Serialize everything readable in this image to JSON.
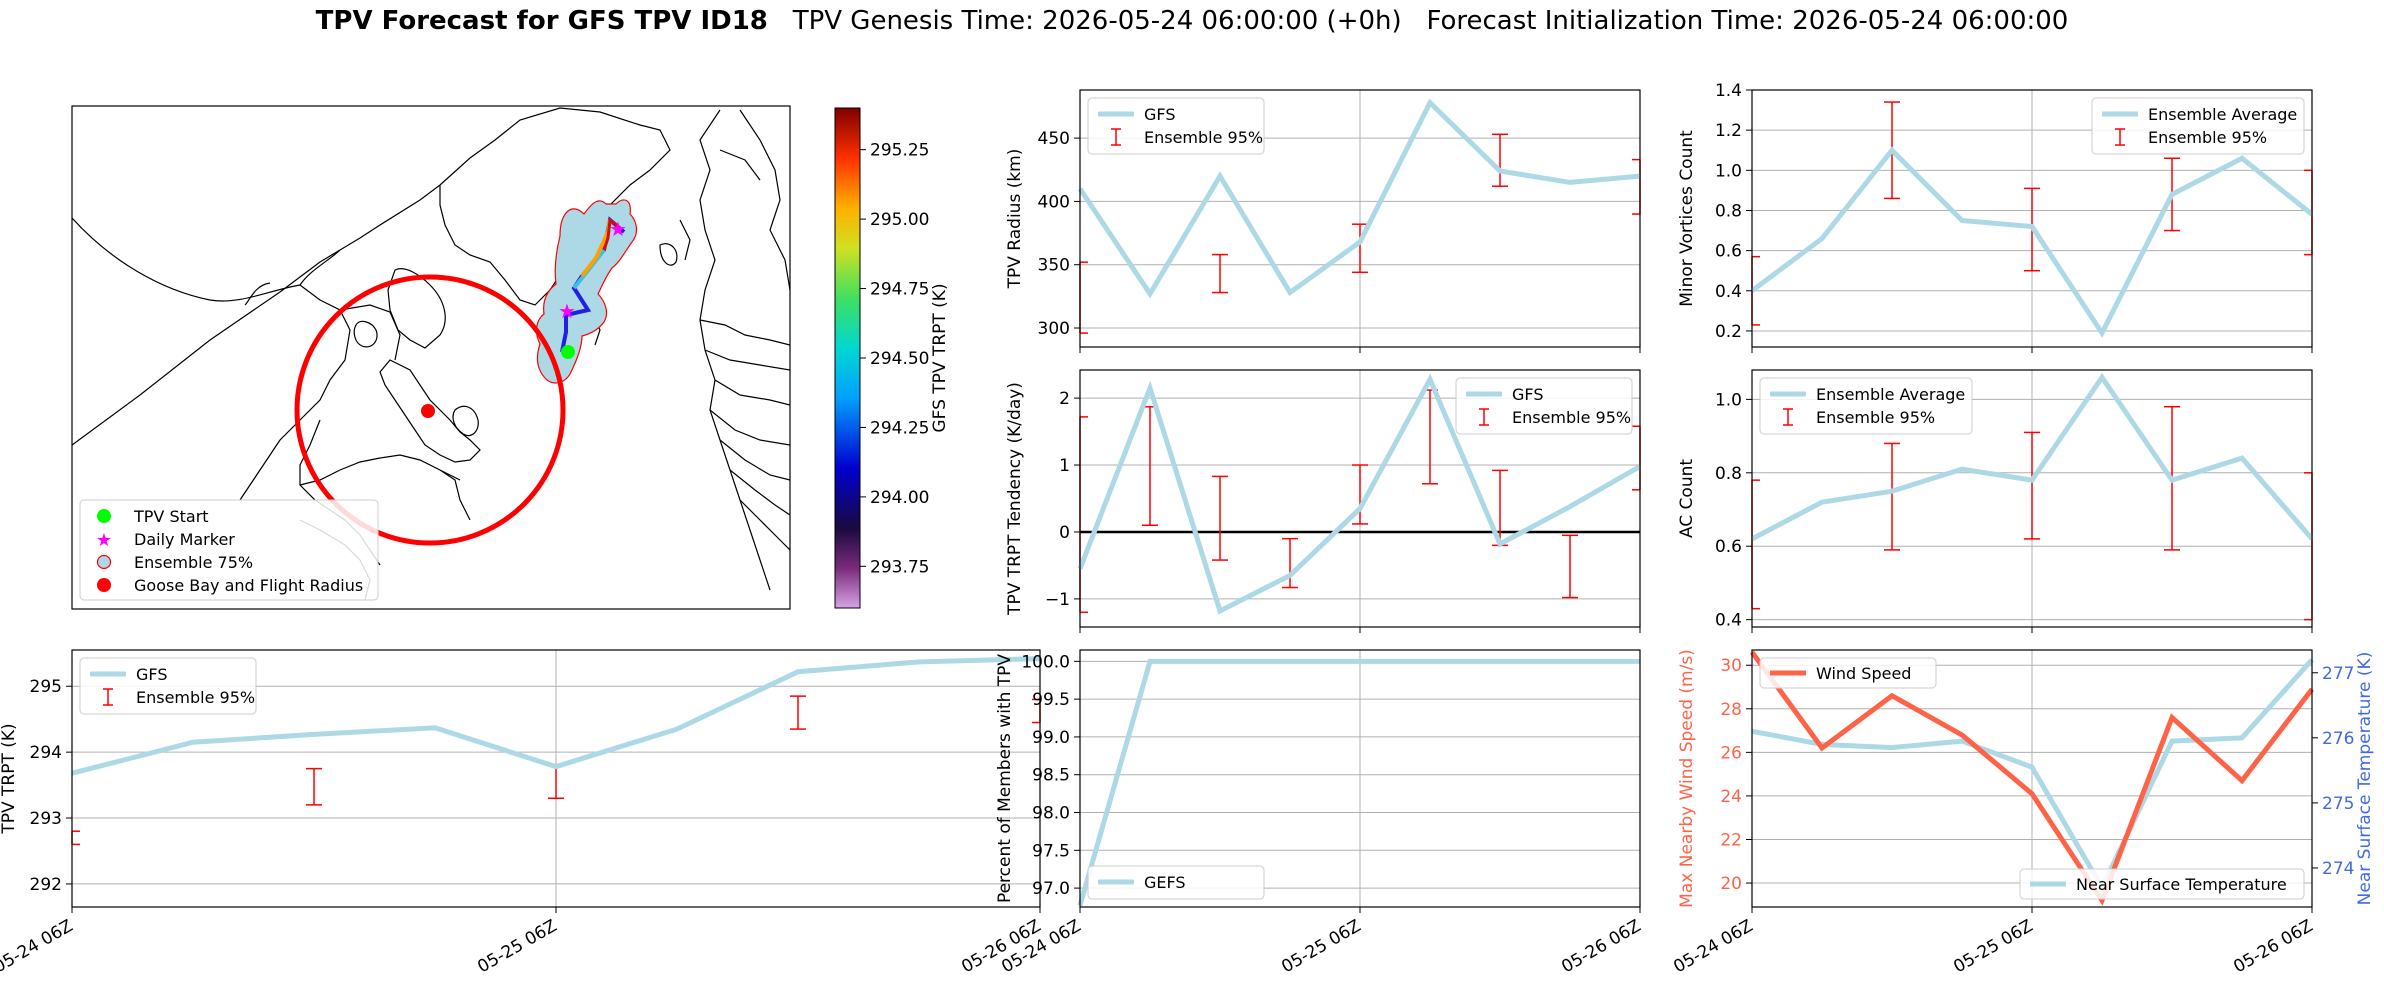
{
  "title": {
    "bold": "TPV Forecast for GFS TPV ID18",
    "genesis": "TPV Genesis Time: 2026-05-24 06:00:00 (+0h)",
    "init": "Forecast Initialization Time: 2026-05-24 06:00:00"
  },
  "colors": {
    "main_line": "#add8e6",
    "error_bar": "#ff0000",
    "wind": "#ff6347",
    "temp_axis": "#4169e1",
    "grid": "#b0b0b0"
  },
  "map": {
    "colorbar_label": "GFS TPV TRPT (K)",
    "colorbar_ticks": [
      "293.75",
      "294.00",
      "294.25",
      "294.50",
      "294.75",
      "295.00",
      "295.25"
    ],
    "legend": [
      {
        "label": "TPV Start",
        "marker": "green-dot"
      },
      {
        "label": "Daily Marker",
        "marker": "magenta-star"
      },
      {
        "label": "Ensemble 75%",
        "marker": "lightblue-circle-red-edge"
      },
      {
        "label": "Goose Bay and Flight Radius",
        "marker": "red-dot"
      }
    ]
  },
  "x_ticks": [
    "05-24 06Z",
    "05-25 06Z",
    "05-26 06Z"
  ],
  "chart_data": [
    {
      "id": "radius",
      "type": "line",
      "ylabel": "TPV Radius (km)",
      "ylim": [
        285,
        488
      ],
      "yticks": [
        300,
        350,
        400,
        450
      ],
      "ytick_labels": [
        "300",
        "350",
        "400",
        "450"
      ],
      "grid": true,
      "legend_position": "upper-left",
      "legend": [
        "GFS",
        "Ensemble 95%"
      ],
      "x": [
        0,
        6,
        12,
        18,
        24,
        30,
        36,
        42,
        48
      ],
      "series": [
        {
          "name": "GFS",
          "values": [
            410,
            327,
            420,
            328,
            368,
            478,
            424,
            415,
            420
          ]
        }
      ],
      "errorbars": [
        {
          "x": 0,
          "low": 296,
          "high": 352
        },
        {
          "x": 12,
          "low": 328,
          "high": 358
        },
        {
          "x": 24,
          "low": 344,
          "high": 382
        },
        {
          "x": 36,
          "low": 412,
          "high": 453
        },
        {
          "x": 48,
          "low": 390,
          "high": 433
        }
      ]
    },
    {
      "id": "minor",
      "type": "line",
      "ylabel": "Minor Vortices Count",
      "ylim": [
        0.12,
        1.4
      ],
      "yticks": [
        0.2,
        0.4,
        0.6,
        0.8,
        1.0,
        1.2,
        1.4
      ],
      "ytick_labels": [
        "0.2",
        "0.4",
        "0.6",
        "0.8",
        "1.0",
        "1.2",
        "1.4"
      ],
      "grid": true,
      "legend_position": "upper-right",
      "legend": [
        "Ensemble Average",
        "Ensemble 95%"
      ],
      "x": [
        0,
        6,
        12,
        18,
        24,
        30,
        36,
        42,
        48
      ],
      "series": [
        {
          "name": "Ensemble Average",
          "values": [
            0.4,
            0.66,
            1.1,
            0.75,
            0.72,
            0.19,
            0.88,
            1.06,
            0.78
          ]
        }
      ],
      "errorbars": [
        {
          "x": 0,
          "low": 0.23,
          "high": 0.57
        },
        {
          "x": 12,
          "low": 0.86,
          "high": 1.34
        },
        {
          "x": 24,
          "low": 0.5,
          "high": 0.91
        },
        {
          "x": 36,
          "low": 0.7,
          "high": 1.06
        },
        {
          "x": 48,
          "low": 0.58,
          "high": 1.0
        }
      ]
    },
    {
      "id": "tendency",
      "type": "line",
      "ylabel": "TPV TRPT Tendency (K/day)",
      "ylim": [
        -1.42,
        2.42
      ],
      "yticks": [
        -1,
        0,
        1,
        2
      ],
      "ytick_labels": [
        "−1",
        "0",
        "1",
        "2"
      ],
      "grid": true,
      "zero_line": true,
      "legend_position": "upper-right",
      "legend": [
        "GFS",
        "Ensemble 95%"
      ],
      "x": [
        0,
        6,
        12,
        18,
        24,
        30,
        36,
        42,
        48
      ],
      "series": [
        {
          "name": "GFS",
          "values": [
            -0.55,
            2.15,
            -1.18,
            -0.65,
            0.35,
            2.28,
            -0.18,
            0.38,
            0.98
          ]
        }
      ],
      "errorbars": [
        {
          "x": 0,
          "low": -1.2,
          "high": 1.72
        },
        {
          "x": 6,
          "low": 0.1,
          "high": 1.87
        },
        {
          "x": 12,
          "low": -0.42,
          "high": 0.83
        },
        {
          "x": 18,
          "low": -0.83,
          "high": -0.1
        },
        {
          "x": 24,
          "low": 0.12,
          "high": 1.0
        },
        {
          "x": 30,
          "low": 0.72,
          "high": 2.12
        },
        {
          "x": 36,
          "low": -0.2,
          "high": 0.92
        },
        {
          "x": 42,
          "low": -0.98,
          "high": -0.05
        },
        {
          "x": 48,
          "low": 0.63,
          "high": 1.58
        }
      ]
    },
    {
      "id": "ac",
      "type": "line",
      "ylabel": "AC Count",
      "ylim": [
        0.38,
        1.08
      ],
      "yticks": [
        0.4,
        0.6,
        0.8,
        1.0
      ],
      "ytick_labels": [
        "0.4",
        "0.6",
        "0.8",
        "1.0"
      ],
      "grid": true,
      "legend_position": "upper-left",
      "legend": [
        "Ensemble Average",
        "Ensemble 95%"
      ],
      "x": [
        0,
        6,
        12,
        18,
        24,
        30,
        36,
        42,
        48
      ],
      "series": [
        {
          "name": "Ensemble Average",
          "values": [
            0.62,
            0.72,
            0.75,
            0.81,
            0.78,
            1.06,
            0.78,
            0.84,
            0.62
          ]
        }
      ],
      "errorbars": [
        {
          "x": 0,
          "low": 0.43,
          "high": 0.78
        },
        {
          "x": 12,
          "low": 0.59,
          "high": 0.88
        },
        {
          "x": 24,
          "low": 0.62,
          "high": 0.91
        },
        {
          "x": 36,
          "low": 0.59,
          "high": 0.98
        },
        {
          "x": 48,
          "low": 0.4,
          "high": 0.8
        }
      ]
    },
    {
      "id": "trpt",
      "type": "line",
      "ylabel": "TPV TRPT (K)",
      "ylim": [
        291.65,
        295.55
      ],
      "yticks": [
        292,
        293,
        294,
        295
      ],
      "ytick_labels": [
        "292",
        "293",
        "294",
        "295"
      ],
      "grid": true,
      "legend_position": "upper-left",
      "legend": [
        "GFS",
        "Ensemble 95%"
      ],
      "x": [
        0,
        6,
        12,
        18,
        24,
        30,
        36,
        42,
        48
      ],
      "series": [
        {
          "name": "GFS",
          "values": [
            293.68,
            294.15,
            294.27,
            294.37,
            293.78,
            294.35,
            295.22,
            295.37,
            295.42
          ]
        }
      ],
      "errorbars": [
        {
          "x": 0,
          "low": 292.6,
          "high": 292.8
        },
        {
          "x": 12,
          "low": 293.2,
          "high": 293.75
        },
        {
          "x": 24,
          "low": 293.3,
          "high": 293.8
        },
        {
          "x": 36,
          "low": 294.35,
          "high": 294.85
        },
        {
          "x": 48,
          "low": 294.45,
          "high": 294.8
        }
      ]
    },
    {
      "id": "members",
      "type": "line",
      "ylabel": "Percent of Members with TPV",
      "ylim": [
        96.75,
        100.15
      ],
      "yticks": [
        97.0,
        97.5,
        98.0,
        98.5,
        99.0,
        99.5,
        100.0
      ],
      "ytick_labels": [
        "97.0",
        "97.5",
        "98.0",
        "98.5",
        "99.0",
        "99.5",
        "100.0"
      ],
      "grid": true,
      "legend_position": "lower-left",
      "legend": [
        "GEFS"
      ],
      "x": [
        0,
        6,
        12,
        18,
        24,
        30,
        36,
        42,
        48
      ],
      "series": [
        {
          "name": "GEFS",
          "values": [
            96.77,
            100,
            100,
            100,
            100,
            100,
            100,
            100,
            100
          ]
        }
      ],
      "errorbars": []
    },
    {
      "id": "wind_temp",
      "type": "line",
      "ylabel": "Max Nearby Wind Speed (m/s)",
      "ylabel_right": "Near Surface Temperature (K)",
      "ylim": [
        18.9,
        30.7
      ],
      "ylim_right": [
        273.4,
        277.35
      ],
      "yticks": [
        20,
        22,
        24,
        26,
        28,
        30
      ],
      "ytick_labels": [
        "20",
        "22",
        "24",
        "26",
        "28",
        "30"
      ],
      "yticks_right": [
        274,
        275,
        276,
        277
      ],
      "ytick_labels_right": [
        "274",
        "275",
        "276",
        "277"
      ],
      "grid": true,
      "legend_position": "upper-left / lower-right",
      "legend": [
        "Wind Speed",
        "Near Surface Temperature"
      ],
      "x": [
        0,
        6,
        12,
        18,
        24,
        30,
        36,
        42,
        48
      ],
      "series": [
        {
          "name": "Wind Speed",
          "values": [
            30.6,
            26.2,
            28.6,
            26.8,
            24.1,
            19.2,
            27.6,
            24.7,
            28.9
          ]
        },
        {
          "name": "Near Surface Temperature",
          "values": [
            276.1,
            275.9,
            275.85,
            275.95,
            275.55,
            273.7,
            275.95,
            276.0,
            277.2
          ]
        }
      ],
      "errorbars": []
    }
  ]
}
